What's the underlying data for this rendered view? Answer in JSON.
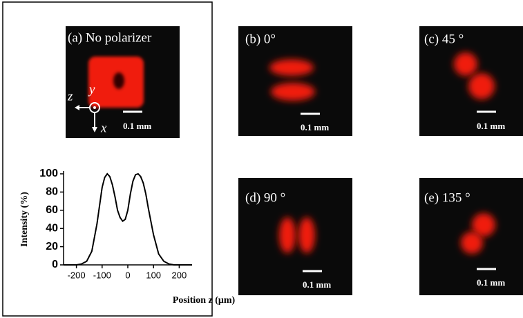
{
  "panels": [
    {
      "label": "(a) No polarizer",
      "scale": "0.1 mm",
      "axes": [
        "z",
        "y",
        "x"
      ]
    },
    {
      "label": "(b) 0°",
      "scale": "0.1 mm"
    },
    {
      "label": "(c) 45 °",
      "scale": "0.1 mm"
    },
    {
      "label": "(d) 90 °",
      "scale": "0.1 mm"
    },
    {
      "label": "(e) 135 °",
      "scale": "0.1 mm"
    }
  ],
  "chart_data": {
    "type": "line",
    "x_label": "Position z (μm)",
    "y_label": "Intensity (%)",
    "x": [
      -250,
      -200,
      -180,
      -160,
      -140,
      -120,
      -100,
      -90,
      -80,
      -70,
      -60,
      -50,
      -40,
      -30,
      -20,
      -10,
      0,
      10,
      20,
      30,
      40,
      50,
      60,
      70,
      80,
      100,
      120,
      140,
      160,
      180,
      200,
      250
    ],
    "values": [
      0,
      0,
      1,
      4,
      15,
      45,
      85,
      96,
      100,
      97,
      88,
      75,
      60,
      52,
      48,
      50,
      60,
      78,
      92,
      99,
      100,
      97,
      90,
      78,
      62,
      33,
      12,
      4,
      1,
      0,
      0,
      0
    ],
    "color": "#000000",
    "xlim": [
      -250,
      250
    ],
    "xticks": [
      -200,
      -100,
      0,
      100,
      200
    ],
    "ylim": [
      0,
      100
    ],
    "yticks": [
      0,
      20,
      40,
      60,
      80,
      100
    ]
  }
}
